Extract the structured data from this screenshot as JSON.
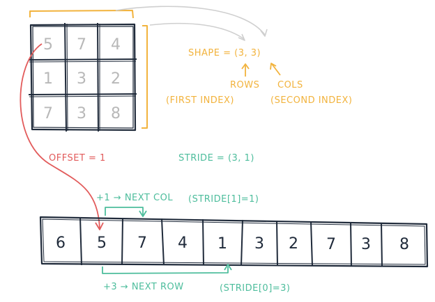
{
  "matrix": {
    "cells": [
      "5",
      "7",
      "4",
      "1",
      "3",
      "2",
      "7",
      "3",
      "8"
    ]
  },
  "storage": {
    "cells": [
      "6",
      "5",
      "7",
      "4",
      "1",
      "3",
      "2",
      "7",
      "3",
      "8"
    ]
  },
  "labels": {
    "shape": "SHAPE = (3, 3)",
    "rows": "ROWS",
    "first_index": "(FIRST INDEX)",
    "cols": "COLS",
    "second_index": "(SECOND INDEX)",
    "offset": "OFFSET = 1",
    "stride": "STRIDE = (3, 1)",
    "next_col": "+1 → NEXT COL",
    "stride_1": "(STRIDE[1]=1)",
    "next_row": "+3 → NEXT ROW",
    "stride_0": "(STRIDE[0]=3)"
  },
  "colors": {
    "shape": "#f2b33d",
    "offset": "#e25b5b",
    "stride": "#4dbd9c",
    "ink": "#1f2a3a",
    "faint": "#b8b8b8",
    "arrow_grey": "#cfcfcf"
  }
}
